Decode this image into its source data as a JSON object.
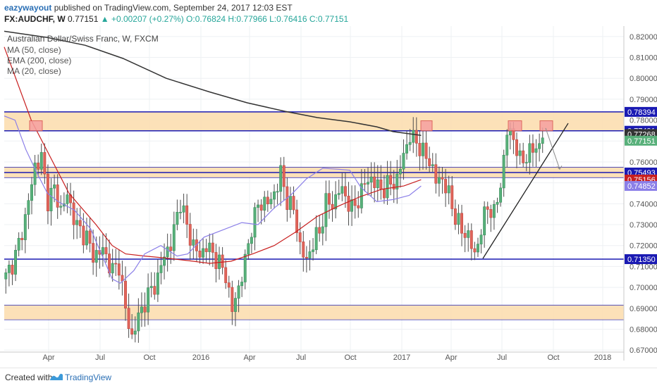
{
  "header": {
    "author": "eazywayout",
    "published_text": " published on TradingView.com, September 24, 2017 12:03 EST",
    "symbol": "FX:AUDCHF, W",
    "last": "0.77151",
    "change": "▲ +0.00207 (+0.27%)",
    "ohlc": "O:0.76824 H:0.77966 L:0.76416 C:0.77151"
  },
  "legend": {
    "title": "Australian Dollar/Swiss Franc, W, FXCM",
    "ma50": "MA (50, close)",
    "ema200": "EMA (200, close)",
    "ma20": "MA (20, close)"
  },
  "footer": {
    "created_with": "Created with",
    "brand": "TradingView"
  },
  "colors": {
    "up": "#26a69a",
    "down": "#e23c3c",
    "ma50": "#c81e1e",
    "ema200": "#333333",
    "ma20": "#8b7fe8",
    "zone": "#fcdcab",
    "hline": "#1a1ab3",
    "box": "#f5a0a0"
  },
  "chart_data": {
    "type": "candlestick",
    "ylim": [
      0.665,
      0.825
    ],
    "y_ticks": [
      "0.82000",
      "0.81000",
      "0.80000",
      "0.79000",
      "0.78000",
      "0.77000",
      "0.76000",
      "0.75000",
      "0.74000",
      "0.73000",
      "0.72000",
      "0.71000",
      "0.70000",
      "0.69000",
      "0.68000",
      "0.67000"
    ],
    "x_ticks": [
      "Apr",
      "Jul",
      "Oct",
      "2016",
      "Apr",
      "Jul",
      "Oct",
      "2017",
      "Apr",
      "Jul",
      "Oct",
      "2018"
    ],
    "price_labels": [
      {
        "text": "0.78394",
        "style": "level"
      },
      {
        "text": "0.77491",
        "style": "level"
      },
      {
        "text": "0.77268",
        "style": "ema"
      },
      {
        "text": "0.77151",
        "style": "last"
      },
      {
        "text": "0.75493",
        "style": "level"
      },
      {
        "text": "0.75156",
        "style": "ma50"
      },
      {
        "text": "0.74852",
        "style": "ma20"
      },
      {
        "text": "0.71350",
        "style": "level"
      }
    ],
    "horizontal_levels": [
      0.78394,
      0.77491,
      0.75493,
      0.7135
    ],
    "zones": [
      [
        0.7749,
        0.7839
      ],
      [
        0.7525,
        0.7575
      ],
      [
        0.6845,
        0.6915
      ]
    ],
    "series": [
      {
        "name": "MA (50, close)",
        "values": [
          [
            0,
            0.815
          ],
          [
            50,
            0.78
          ],
          [
            80,
            0.765
          ],
          [
            120,
            0.745
          ],
          [
            170,
            0.73
          ],
          [
            200,
            0.72
          ],
          [
            225,
            0.716
          ],
          [
            260,
            0.715
          ],
          [
            300,
            0.714
          ],
          [
            350,
            0.7125
          ],
          [
            380,
            0.7115
          ],
          [
            420,
            0.7125
          ],
          [
            460,
            0.716
          ],
          [
            500,
            0.72
          ],
          [
            540,
            0.7265
          ],
          [
            580,
            0.734
          ],
          [
            620,
            0.739
          ],
          [
            660,
            0.7435
          ],
          [
            700,
            0.747
          ],
          [
            740,
            0.7485
          ],
          [
            772,
            0.7515
          ]
        ]
      },
      {
        "name": "EMA (200, close)",
        "values": [
          [
            0,
            0.8225
          ],
          [
            80,
            0.8195
          ],
          [
            150,
            0.8158
          ],
          [
            220,
            0.8095
          ],
          [
            300,
            0.8
          ],
          [
            380,
            0.7935
          ],
          [
            450,
            0.7883
          ],
          [
            520,
            0.7842
          ],
          [
            580,
            0.7812
          ],
          [
            640,
            0.7792
          ],
          [
            690,
            0.7768
          ],
          [
            720,
            0.7745
          ],
          [
            772,
            0.7727
          ]
        ]
      },
      {
        "name": "MA (20, close)",
        "values": [
          [
            0,
            0.782
          ],
          [
            20,
            0.78
          ],
          [
            40,
            0.766
          ],
          [
            60,
            0.755
          ],
          [
            80,
            0.745
          ],
          [
            100,
            0.741
          ],
          [
            130,
            0.737
          ],
          [
            160,
            0.728
          ],
          [
            180,
            0.716
          ],
          [
            200,
            0.704
          ],
          [
            215,
            0.702
          ],
          [
            240,
            0.708
          ],
          [
            260,
            0.716
          ],
          [
            290,
            0.72
          ],
          [
            320,
            0.715
          ],
          [
            340,
            0.716
          ],
          [
            370,
            0.724
          ],
          [
            400,
            0.727
          ],
          [
            440,
            0.731
          ],
          [
            470,
            0.73
          ],
          [
            500,
            0.738
          ],
          [
            530,
            0.744
          ],
          [
            560,
            0.752
          ],
          [
            590,
            0.757
          ],
          [
            620,
            0.7565
          ],
          [
            640,
            0.756
          ],
          [
            660,
            0.748
          ],
          [
            690,
            0.741
          ],
          [
            720,
            0.742
          ],
          [
            750,
            0.744
          ],
          [
            772,
            0.7485
          ]
        ]
      }
    ],
    "candle_range": {
      "from": "2015-02",
      "to": "2017-09",
      "count": 137,
      "high": 0.7797,
      "low": 0.6675
    }
  }
}
